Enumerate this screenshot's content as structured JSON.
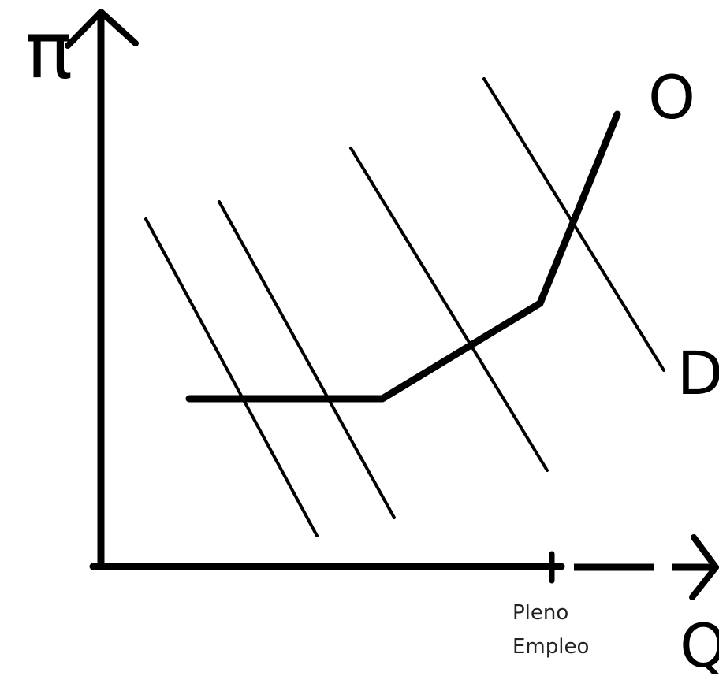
{
  "labels": {
    "y_axis": "π",
    "x_axis": "Q",
    "supply": "O",
    "demand": "D",
    "full_employment": [
      "Pleno",
      "Empleo"
    ]
  }
}
